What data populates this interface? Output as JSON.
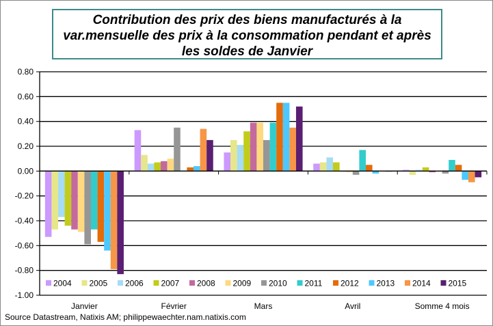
{
  "chart_data": {
    "type": "bar",
    "title": "Contribution des prix des biens manufacturés à la var.mensuelle des prix à la consommation pendant et après les soldes de Janvier",
    "xlabel": "",
    "ylabel": "",
    "ylim": [
      -1.0,
      0.8
    ],
    "yticks": [
      "0.80",
      "0.60",
      "0.40",
      "0.20",
      "0.00",
      "-0.20",
      "-0.40",
      "-0.60",
      "-0.80",
      "-1.00"
    ],
    "grid": true,
    "legend": "bottom-inside",
    "categories": [
      "Janvier",
      "Février",
      "Mars",
      "Avril",
      "Somme 4 mois"
    ],
    "series": [
      {
        "name": "2004",
        "color": "#cc99ff",
        "values": [
          -0.53,
          0.33,
          0.15,
          0.06,
          0.01
        ]
      },
      {
        "name": "2005",
        "color": "#e6e68a",
        "values": [
          -0.47,
          0.13,
          0.25,
          0.07,
          -0.03
        ]
      },
      {
        "name": "2006",
        "color": "#a6dcf5",
        "values": [
          -0.37,
          0.06,
          0.21,
          0.11,
          0.01
        ]
      },
      {
        "name": "2007",
        "color": "#c2cc1a",
        "values": [
          -0.44,
          0.07,
          0.32,
          0.07,
          0.03
        ]
      },
      {
        "name": "2008",
        "color": "#c4699e",
        "values": [
          -0.47,
          0.08,
          0.39,
          0.0,
          -0.01
        ]
      },
      {
        "name": "2009",
        "color": "#ffd980",
        "values": [
          -0.49,
          0.1,
          0.39,
          -0.01,
          0.005
        ]
      },
      {
        "name": "2010",
        "color": "#969696",
        "values": [
          -0.59,
          0.35,
          0.25,
          -0.03,
          -0.02
        ]
      },
      {
        "name": "2011",
        "color": "#33cccc",
        "values": [
          -0.47,
          0.005,
          0.39,
          0.17,
          0.09
        ]
      },
      {
        "name": "2012",
        "color": "#e46c0a",
        "values": [
          -0.57,
          0.03,
          0.55,
          0.05,
          0.05
        ]
      },
      {
        "name": "2013",
        "color": "#4dc8ff",
        "values": [
          -0.64,
          0.04,
          0.55,
          -0.02,
          -0.07
        ]
      },
      {
        "name": "2014",
        "color": "#f79646",
        "values": [
          -0.79,
          0.34,
          0.35,
          0.005,
          -0.09
        ]
      },
      {
        "name": "2015",
        "color": "#5a1f72",
        "values": [
          -0.83,
          0.25,
          0.52,
          0.0,
          -0.05
        ]
      }
    ]
  },
  "source": "Source Datastream, Natixis AM;  philippewaechter.nam.natixis.com"
}
